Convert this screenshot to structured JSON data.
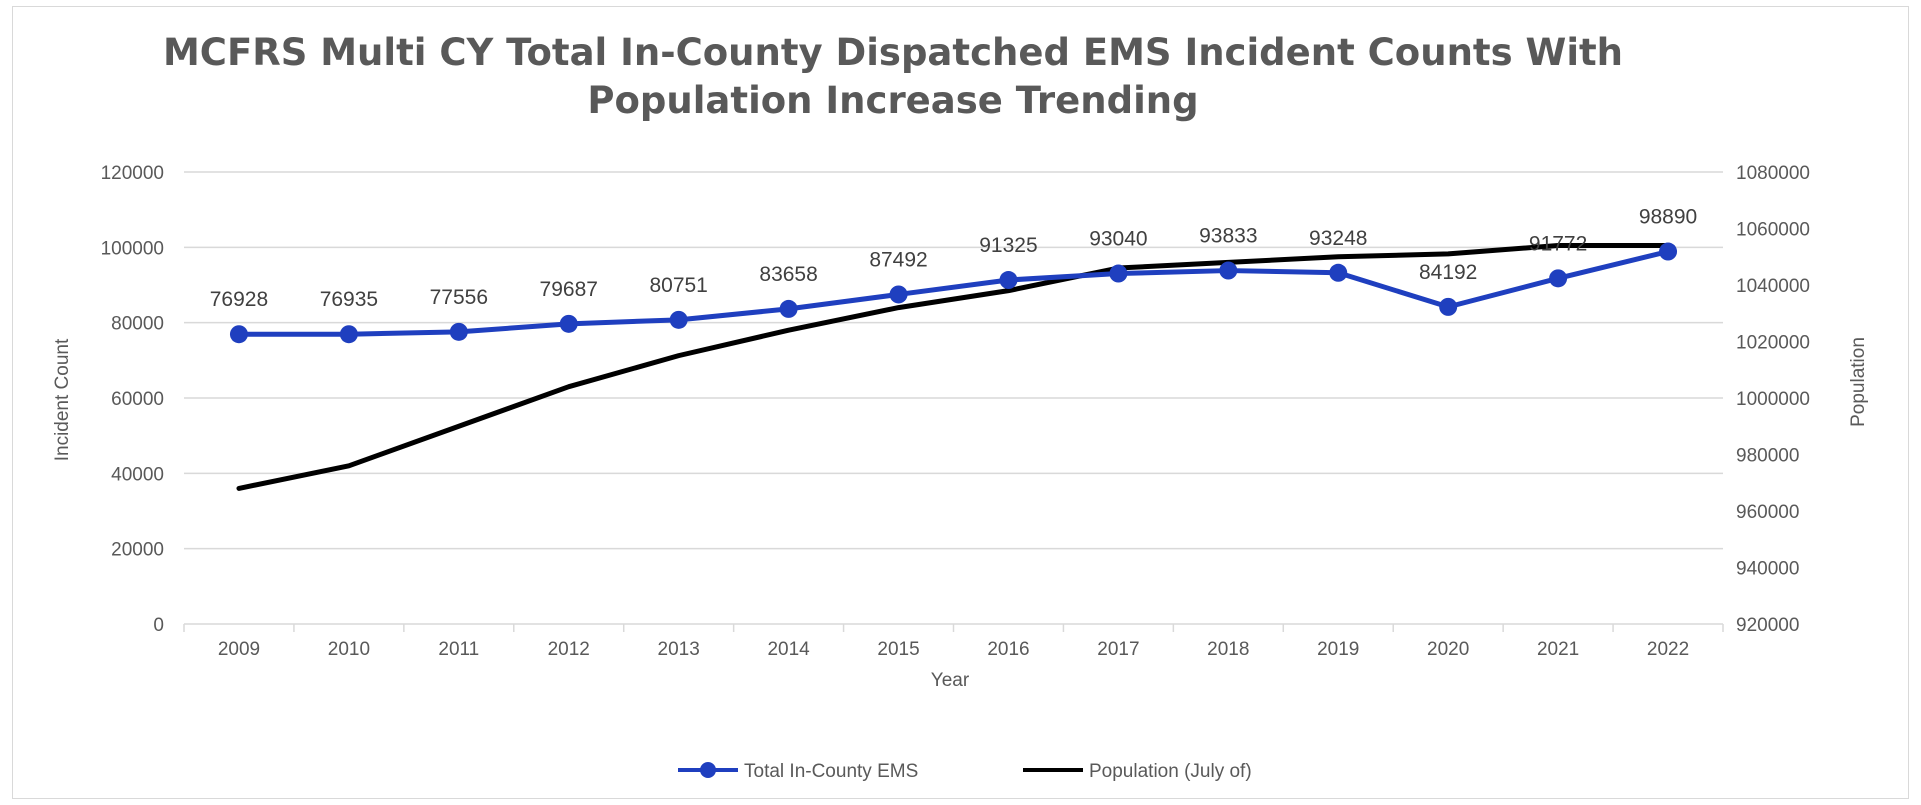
{
  "chart_data": {
    "type": "line",
    "title_lines": [
      "MCFRS Multi CY Total In-County Dispatched EMS Incident Counts With",
      "Population Increase Trending"
    ],
    "xlabel": "Year",
    "ylabel": "Incident Count",
    "y2label": "Population",
    "categories": [
      "2009",
      "2010",
      "2011",
      "2012",
      "2013",
      "2014",
      "2015",
      "2016",
      "2017",
      "2018",
      "2019",
      "2020",
      "2021",
      "2022"
    ],
    "ylim": [
      0,
      120000
    ],
    "yticks": [
      0,
      20000,
      40000,
      60000,
      80000,
      100000,
      120000
    ],
    "y2lim": [
      920000,
      1080000
    ],
    "y2ticks": [
      920000,
      940000,
      960000,
      980000,
      1000000,
      1020000,
      1040000,
      1060000,
      1080000
    ],
    "grid": true,
    "legend_position": "bottom",
    "series": [
      {
        "name": "Total In-County EMS",
        "axis": "left",
        "color": "#1f3fbf",
        "marker": "circle",
        "values": [
          76928,
          76935,
          77556,
          79687,
          80751,
          83658,
          87492,
          91325,
          93040,
          93833,
          93248,
          84192,
          91772,
          98890
        ],
        "data_labels": [
          "76928",
          "76935",
          "77556",
          "79687",
          "80751",
          "83658",
          "87492",
          "91325",
          "93040",
          "93833",
          "93248",
          "84192",
          "91772",
          "98890"
        ]
      },
      {
        "name": "Population (July of)",
        "axis": "right",
        "color": "#000000",
        "marker": "none",
        "values": [
          968000,
          976000,
          990000,
          1004000,
          1015000,
          1024000,
          1032000,
          1038000,
          1046000,
          1048000,
          1050000,
          1051000,
          1054000,
          1054000
        ]
      }
    ]
  }
}
